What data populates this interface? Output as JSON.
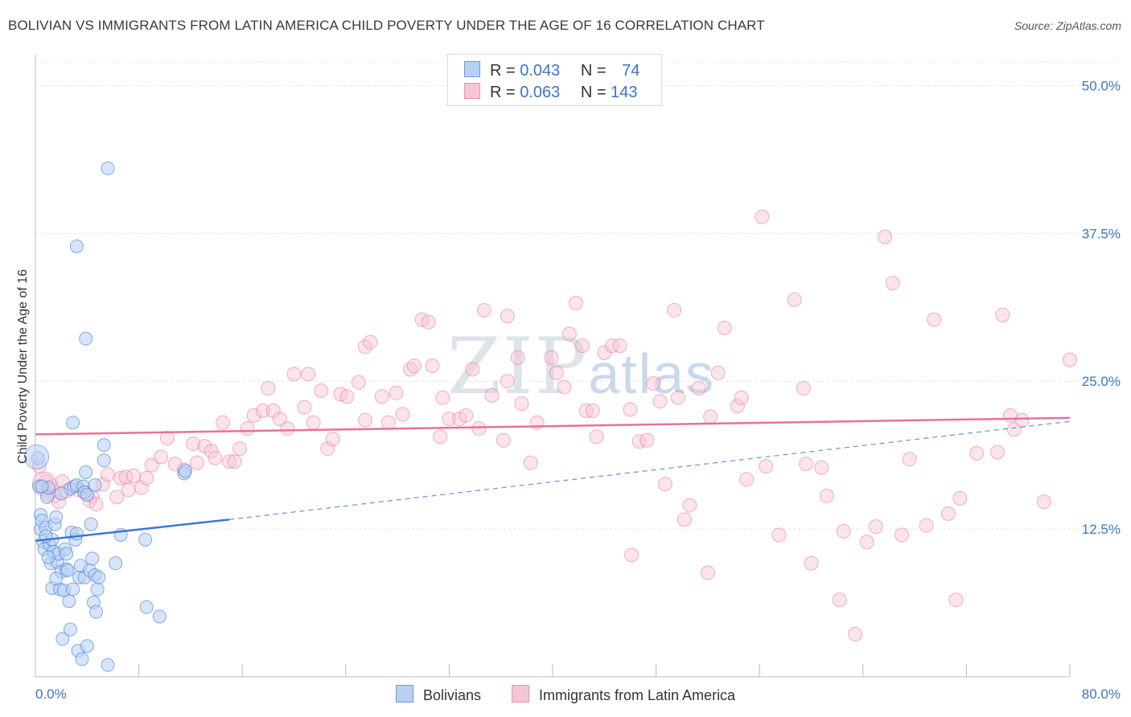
{
  "title": "BOLIVIAN VS IMMIGRANTS FROM LATIN AMERICA CHILD POVERTY UNDER THE AGE OF 16 CORRELATION CHART",
  "source": "Source: ZipAtlas.com",
  "watermark": {
    "zip": "ZIP",
    "atlas": "atlas"
  },
  "colors": {
    "blue": "#3a78d8",
    "blue_fill": "#b8d0f2",
    "pink": "#e8709a",
    "pink_fill": "#f6c4d4",
    "axis_text": "#3d74c6",
    "grid": "#e4e4e4"
  },
  "legend": {
    "rows": [
      {
        "r_label": "R =",
        "r_value": "0.043",
        "n_label": "N =",
        "n_value": "74"
      },
      {
        "r_label": "R =",
        "r_value": "0.063",
        "n_label": "N =",
        "n_value": "143"
      }
    ]
  },
  "bottom_legend": {
    "series1": "Bolivians",
    "series2": "Immigrants from Latin America"
  },
  "chart_data": {
    "type": "scatter",
    "title": "BOLIVIAN VS IMMIGRANTS FROM LATIN AMERICA CHILD POVERTY UNDER THE AGE OF 16 CORRELATION CHART",
    "xlabel": "",
    "ylabel": "Child Poverty Under the Age of 16",
    "xlim": [
      0,
      80
    ],
    "ylim": [
      0,
      52
    ],
    "x_tick_labels": {
      "min": "0.0%",
      "max": "80.0%"
    },
    "y_ticks": [
      12.5,
      25.0,
      37.5,
      50.0
    ],
    "y_tick_labels": [
      "12.5%",
      "25.0%",
      "37.5%",
      "50.0%"
    ],
    "series": [
      {
        "name": "Bolivians",
        "R": 0.043,
        "N": 74,
        "trend": {
          "x": [
            0,
            15
          ],
          "y": [
            11.5,
            13.3
          ],
          "dashed_to": [
            80,
            21.6
          ]
        },
        "points": [
          [
            0.2,
            18.5
          ],
          [
            0.3,
            16.1
          ],
          [
            0.4,
            13.7
          ],
          [
            0.4,
            12.5
          ],
          [
            0.5,
            13.2
          ],
          [
            0.6,
            11.4
          ],
          [
            0.7,
            10.8
          ],
          [
            0.8,
            12.6
          ],
          [
            0.9,
            15.2
          ],
          [
            1.0,
            16.0
          ],
          [
            1.1,
            11.2
          ],
          [
            1.2,
            9.6
          ],
          [
            1.3,
            7.5
          ],
          [
            1.4,
            10.6
          ],
          [
            1.5,
            12.9
          ],
          [
            1.6,
            13.5
          ],
          [
            1.7,
            9.7
          ],
          [
            1.8,
            10.4
          ],
          [
            1.9,
            7.4
          ],
          [
            2.0,
            8.9
          ],
          [
            2.1,
            3.2
          ],
          [
            2.2,
            7.3
          ],
          [
            2.3,
            10.8
          ],
          [
            2.4,
            9.1
          ],
          [
            2.5,
            9.0
          ],
          [
            2.6,
            6.4
          ],
          [
            2.7,
            15.9
          ],
          [
            2.7,
            4.0
          ],
          [
            2.8,
            12.2
          ],
          [
            2.9,
            7.4
          ],
          [
            3.0,
            16.1
          ],
          [
            3.1,
            11.6
          ],
          [
            3.2,
            16.2
          ],
          [
            3.3,
            2.2
          ],
          [
            3.4,
            8.4
          ],
          [
            3.5,
            9.4
          ],
          [
            3.6,
            1.5
          ],
          [
            3.7,
            16.1
          ],
          [
            3.8,
            8.4
          ],
          [
            3.8,
            15.6
          ],
          [
            3.9,
            17.3
          ],
          [
            4.0,
            2.6
          ],
          [
            4.0,
            15.4
          ],
          [
            4.2,
            9.0
          ],
          [
            4.3,
            12.9
          ],
          [
            4.4,
            10.0
          ],
          [
            4.5,
            6.3
          ],
          [
            4.6,
            8.6
          ],
          [
            4.6,
            16.2
          ],
          [
            4.7,
            5.5
          ],
          [
            4.8,
            7.4
          ],
          [
            4.9,
            8.4
          ],
          [
            2.9,
            21.5
          ],
          [
            5.3,
            19.6
          ],
          [
            5.3,
            18.3
          ],
          [
            3.9,
            28.6
          ],
          [
            3.2,
            36.4
          ],
          [
            5.6,
            1.0
          ],
          [
            5.6,
            43.0
          ],
          [
            6.2,
            9.6
          ],
          [
            6.6,
            12.0
          ],
          [
            8.5,
            11.6
          ],
          [
            8.6,
            5.9
          ],
          [
            9.6,
            5.1
          ],
          [
            11.5,
            17.2
          ],
          [
            11.6,
            17.4
          ],
          [
            1.3,
            11.6
          ],
          [
            2.0,
            15.5
          ],
          [
            1.0,
            10.1
          ],
          [
            0.5,
            16.1
          ],
          [
            1.6,
            8.3
          ],
          [
            2.4,
            10.4
          ],
          [
            3.2,
            12.1
          ],
          [
            0.8,
            11.9
          ]
        ]
      },
      {
        "name": "Immigrants from Latin America",
        "R": 0.063,
        "N": 143,
        "trend": {
          "x": [
            0,
            80
          ],
          "y": [
            20.5,
            21.9
          ]
        },
        "points": [
          [
            0.3,
            17.8
          ],
          [
            0.8,
            16.5
          ],
          [
            1.0,
            15.4
          ],
          [
            1.3,
            16.1
          ],
          [
            1.5,
            15.3
          ],
          [
            1.8,
            14.8
          ],
          [
            2.1,
            16.5
          ],
          [
            2.4,
            15.7
          ],
          [
            3.3,
            15.8
          ],
          [
            3.8,
            15.6
          ],
          [
            4.2,
            14.9
          ],
          [
            4.4,
            15.3
          ],
          [
            4.7,
            14.6
          ],
          [
            5.2,
            16.3
          ],
          [
            5.6,
            17.1
          ],
          [
            6.3,
            15.2
          ],
          [
            6.6,
            16.8
          ],
          [
            7.0,
            16.9
          ],
          [
            7.6,
            17.0
          ],
          [
            8.2,
            16.0
          ],
          [
            8.6,
            16.8
          ],
          [
            9.0,
            17.9
          ],
          [
            9.7,
            18.6
          ],
          [
            10.2,
            20.2
          ],
          [
            10.8,
            18.0
          ],
          [
            11.5,
            17.5
          ],
          [
            12.2,
            19.7
          ],
          [
            12.5,
            18.1
          ],
          [
            13.1,
            19.5
          ],
          [
            13.6,
            19.1
          ],
          [
            13.9,
            18.5
          ],
          [
            14.5,
            21.5
          ],
          [
            15.0,
            18.2
          ],
          [
            15.4,
            18.2
          ],
          [
            15.8,
            19.3
          ],
          [
            16.4,
            21.0
          ],
          [
            16.9,
            22.1
          ],
          [
            17.6,
            22.5
          ],
          [
            18.0,
            24.4
          ],
          [
            18.4,
            22.5
          ],
          [
            18.9,
            21.8
          ],
          [
            19.5,
            21.0
          ],
          [
            20.0,
            25.6
          ],
          [
            20.8,
            22.8
          ],
          [
            21.5,
            21.5
          ],
          [
            22.1,
            24.2
          ],
          [
            22.6,
            19.3
          ],
          [
            23.0,
            20.1
          ],
          [
            23.6,
            23.9
          ],
          [
            24.1,
            23.7
          ],
          [
            25.0,
            24.9
          ],
          [
            25.5,
            27.9
          ],
          [
            25.9,
            28.3
          ],
          [
            26.8,
            23.7
          ],
          [
            27.3,
            21.5
          ],
          [
            27.9,
            24.0
          ],
          [
            28.4,
            22.2
          ],
          [
            29.0,
            26.0
          ],
          [
            29.3,
            26.3
          ],
          [
            29.9,
            30.2
          ],
          [
            30.4,
            30.0
          ],
          [
            30.7,
            26.3
          ],
          [
            31.3,
            20.3
          ],
          [
            31.5,
            23.6
          ],
          [
            32.0,
            21.8
          ],
          [
            32.8,
            21.8
          ],
          [
            33.3,
            22.1
          ],
          [
            33.8,
            26.0
          ],
          [
            34.3,
            21.0
          ],
          [
            34.7,
            31.0
          ],
          [
            35.3,
            23.8
          ],
          [
            36.2,
            20.0
          ],
          [
            36.5,
            25.0
          ],
          [
            37.3,
            27.0
          ],
          [
            37.6,
            23.1
          ],
          [
            38.3,
            18.1
          ],
          [
            38.8,
            21.5
          ],
          [
            39.9,
            27.0
          ],
          [
            40.3,
            25.7
          ],
          [
            40.9,
            24.5
          ],
          [
            41.3,
            29.0
          ],
          [
            41.8,
            31.6
          ],
          [
            42.3,
            28.0
          ],
          [
            42.6,
            22.5
          ],
          [
            43.1,
            22.5
          ],
          [
            43.4,
            20.3
          ],
          [
            44.0,
            27.4
          ],
          [
            44.6,
            28.0
          ],
          [
            45.2,
            28.0
          ],
          [
            46.0,
            22.6
          ],
          [
            46.7,
            19.9
          ],
          [
            47.3,
            20.0
          ],
          [
            47.8,
            24.8
          ],
          [
            48.3,
            23.3
          ],
          [
            48.7,
            16.3
          ],
          [
            49.4,
            31.0
          ],
          [
            49.7,
            23.6
          ],
          [
            50.2,
            13.3
          ],
          [
            50.6,
            14.5
          ],
          [
            51.3,
            24.4
          ],
          [
            52.0,
            8.8
          ],
          [
            52.2,
            22.0
          ],
          [
            52.8,
            25.7
          ],
          [
            53.3,
            29.5
          ],
          [
            54.3,
            22.9
          ],
          [
            54.6,
            23.6
          ],
          [
            55.0,
            16.7
          ],
          [
            56.2,
            38.9
          ],
          [
            56.5,
            17.8
          ],
          [
            57.5,
            12.0
          ],
          [
            58.7,
            31.9
          ],
          [
            59.4,
            24.4
          ],
          [
            59.6,
            18.0
          ],
          [
            60.0,
            9.6
          ],
          [
            60.8,
            17.7
          ],
          [
            61.2,
            15.3
          ],
          [
            62.2,
            6.5
          ],
          [
            62.5,
            12.3
          ],
          [
            63.4,
            3.6
          ],
          [
            64.3,
            11.4
          ],
          [
            65.0,
            12.7
          ],
          [
            65.7,
            37.2
          ],
          [
            66.3,
            33.3
          ],
          [
            67.0,
            12.0
          ],
          [
            67.6,
            18.4
          ],
          [
            68.9,
            12.8
          ],
          [
            69.5,
            30.2
          ],
          [
            70.6,
            13.8
          ],
          [
            71.2,
            6.5
          ],
          [
            71.5,
            15.1
          ],
          [
            72.8,
            18.9
          ],
          [
            74.4,
            19.0
          ],
          [
            74.8,
            30.6
          ],
          [
            75.4,
            22.1
          ],
          [
            75.7,
            20.9
          ],
          [
            76.3,
            21.7
          ],
          [
            78.0,
            14.8
          ],
          [
            80.0,
            26.8
          ],
          [
            7.2,
            15.8
          ],
          [
            36.5,
            30.5
          ],
          [
            21.1,
            25.6
          ],
          [
            46.1,
            10.3
          ],
          [
            25.5,
            21.7
          ]
        ]
      }
    ]
  }
}
